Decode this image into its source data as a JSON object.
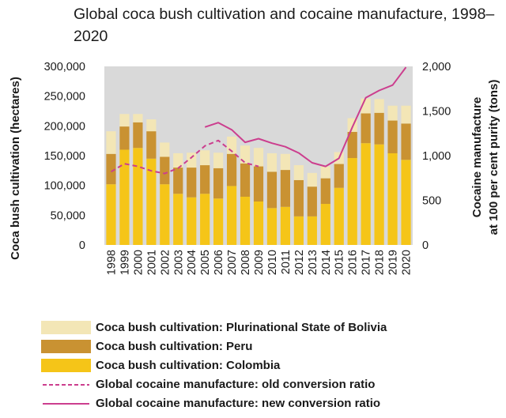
{
  "chart_data": {
    "type": "bar",
    "title": "Global coca bush cultivation and cocaine manufacture, 1998–2020",
    "categories": [
      "1998",
      "1999",
      "2000",
      "2001",
      "2002",
      "2003",
      "2004",
      "2005",
      "2006",
      "2007",
      "2008",
      "2009",
      "2010",
      "2011",
      "2012",
      "2013",
      "2014",
      "2015",
      "2016",
      "2017",
      "2018",
      "2019",
      "2020"
    ],
    "stacked": true,
    "series": [
      {
        "name": "Coca bush cultivation: Colombia",
        "color": "#f5c518",
        "axis": "left",
        "values": [
          102000,
          160000,
          163000,
          145000,
          102000,
          86000,
          80000,
          86000,
          78000,
          99000,
          81000,
          73000,
          62000,
          64000,
          48000,
          48000,
          69000,
          96000,
          146000,
          171000,
          169000,
          154000,
          143000
        ]
      },
      {
        "name": "Coca bush cultivation: Peru",
        "color": "#c99232",
        "axis": "left",
        "values": [
          51000,
          39000,
          43000,
          46000,
          46000,
          44000,
          50000,
          48000,
          51000,
          54000,
          56000,
          59000,
          61000,
          62000,
          61000,
          50000,
          43000,
          40000,
          44000,
          50000,
          53000,
          55000,
          61000
        ]
      },
      {
        "name": "Coca bush cultivation: Plurinational State of Bolivia",
        "color": "#f3e6b6",
        "axis": "left",
        "values": [
          38000,
          21000,
          14000,
          20000,
          24000,
          24000,
          25000,
          25000,
          26000,
          29000,
          30000,
          31000,
          31000,
          27000,
          25000,
          23000,
          20000,
          20000,
          23000,
          25000,
          23000,
          25000,
          30000
        ]
      },
      {
        "name": "Global cocaine manufacture: old conversion ratio",
        "color": "#cc3e8e",
        "style": "dashed",
        "axis": "right",
        "x": [
          "1998",
          "1999",
          "2000",
          "2001",
          "2002",
          "2003",
          "2004",
          "2005",
          "2006",
          "2007",
          "2008",
          "2009"
        ],
        "values": [
          820,
          910,
          880,
          830,
          800,
          860,
          980,
          1110,
          1170,
          1050,
          920,
          880
        ]
      },
      {
        "name": "Global cocaine manufacture: new conversion ratio",
        "color": "#cc3e8e",
        "style": "solid",
        "axis": "right",
        "x": [
          "2005",
          "2006",
          "2007",
          "2008",
          "2009",
          "2010",
          "2011",
          "2012",
          "2013",
          "2014",
          "2015",
          "2016",
          "2017",
          "2018",
          "2019",
          "2020"
        ],
        "values": [
          1320,
          1370,
          1290,
          1150,
          1190,
          1140,
          1100,
          1030,
          920,
          880,
          970,
          1320,
          1650,
          1730,
          1790,
          1990
        ]
      }
    ],
    "y_left": {
      "label": "Coca bush cultivation (hectares)",
      "range": [
        0,
        300000
      ],
      "ticks": [
        "0",
        "50,000",
        "100,000",
        "150,000",
        "200,000",
        "250,000",
        "300,000"
      ]
    },
    "y_right": {
      "label_line1": "Cocaine manufacture",
      "label_line2": "at 100 per cent purity (tons)",
      "range": [
        0,
        2000
      ],
      "ticks": [
        "0",
        "500",
        "1,000",
        "1,500",
        "2,000"
      ]
    },
    "grid": false,
    "plot_background": "#d9d9d9",
    "legend_position": "bottom"
  }
}
